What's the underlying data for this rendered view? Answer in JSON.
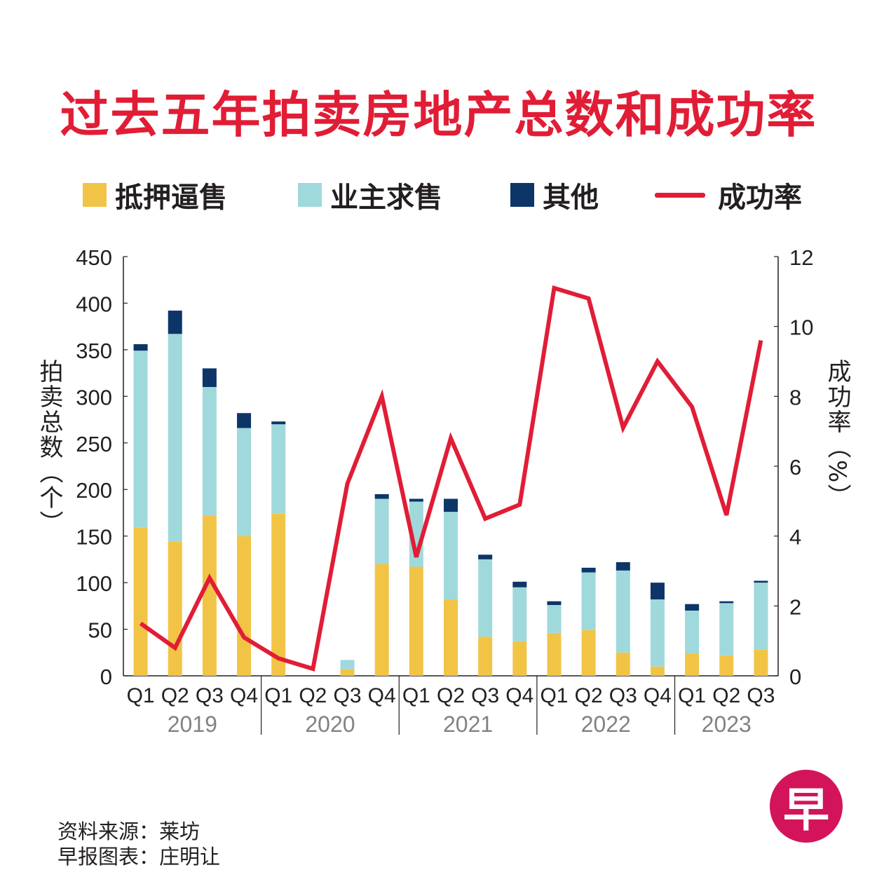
{
  "title": "过去五年拍卖房地产总数和成功率",
  "legend": {
    "mortgagee": "抵押逼售",
    "owner": "业主求售",
    "others": "其他",
    "success_rate": "成功率"
  },
  "colors": {
    "mortgagee": "#f2c446",
    "owner": "#a0d9db",
    "others": "#0d3568",
    "success_rate": "#e11d36",
    "title": "#e11d36",
    "axis": "#231f20",
    "year_label": "#808285",
    "logo": "#d4145a"
  },
  "y_axis_left_title": "拍卖总数（个）",
  "y_axis_right_title": "成功率（%）",
  "credits": {
    "source": "资料来源：莱坊",
    "chart_by": "早报图表：庄明让"
  },
  "logo": {
    "char": "早"
  },
  "chart_data": {
    "type": "bar",
    "stacked": true,
    "title": "过去五年拍卖房地产总数和成功率",
    "categories": [
      "Q1",
      "Q2",
      "Q3",
      "Q4",
      "Q1",
      "Q2",
      "Q3",
      "Q4",
      "Q1",
      "Q2",
      "Q3",
      "Q4",
      "Q1",
      "Q2",
      "Q3",
      "Q4",
      "Q1",
      "Q2",
      "Q3"
    ],
    "years": [
      {
        "label": "2019",
        "quarters": 4
      },
      {
        "label": "2020",
        "quarters": 4
      },
      {
        "label": "2021",
        "quarters": 4
      },
      {
        "label": "2022",
        "quarters": 4
      },
      {
        "label": "2023",
        "quarters": 3
      }
    ],
    "series": [
      {
        "name": "抵押逼售",
        "values": [
          159,
          144,
          172,
          150,
          174,
          0,
          7,
          120,
          117,
          82,
          42,
          37,
          46,
          49,
          25,
          10,
          24,
          22,
          28
        ]
      },
      {
        "name": "业主求售",
        "values": [
          190,
          223,
          138,
          116,
          96,
          0,
          10,
          70,
          70,
          94,
          83,
          58,
          30,
          62,
          88,
          72,
          46,
          56,
          72
        ]
      },
      {
        "name": "其他",
        "values": [
          7,
          25,
          20,
          16,
          3,
          0,
          0,
          5,
          3,
          14,
          5,
          6,
          4,
          5,
          9,
          18,
          7,
          2,
          2
        ]
      }
    ],
    "line": {
      "name": "成功率",
      "axis": "right",
      "values": [
        1.5,
        0.8,
        2.8,
        1.1,
        0.5,
        0.2,
        5.5,
        8.0,
        3.4,
        6.8,
        4.5,
        4.9,
        11.1,
        10.8,
        7.1,
        9.0,
        7.7,
        4.6,
        9.6
      ]
    },
    "y_left": {
      "min": 0,
      "max": 450,
      "ticks": [
        0,
        50,
        100,
        150,
        200,
        250,
        300,
        350,
        400,
        450
      ],
      "label": "拍卖总数（个）"
    },
    "y_right": {
      "min": 0,
      "max": 12,
      "ticks": [
        0,
        2,
        4,
        6,
        8,
        10,
        12
      ],
      "label": "成功率（%）"
    },
    "grid": false
  }
}
